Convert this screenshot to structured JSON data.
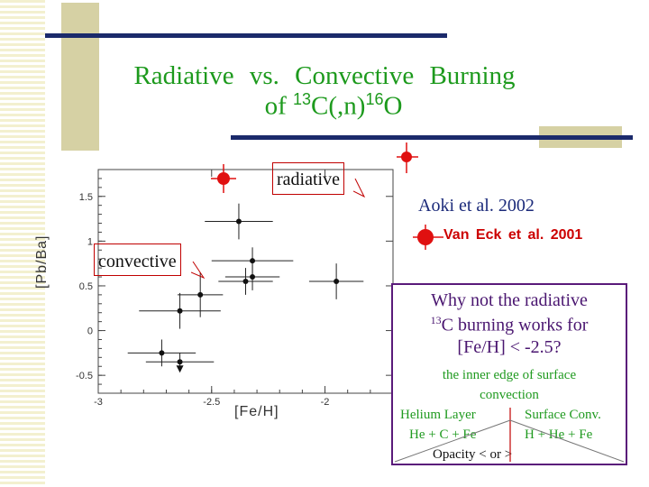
{
  "title": {
    "line1": "Radiative vs. Convective Burning",
    "line2_prefix": "of ",
    "sup13": "13",
    "line2_mid": "C(,n)",
    "sup16": "16",
    "line2_end": "O"
  },
  "chart_data": {
    "type": "scatter",
    "xlabel": "[Fe/H]",
    "ylabel": "[Pb/Ba]",
    "xlim": [
      -3.0,
      -1.7
    ],
    "ylim": [
      -0.7,
      1.8
    ],
    "xticks": [
      "-3",
      "-2.5",
      "-2"
    ],
    "yticks": [
      "1.5",
      "1",
      "0.5",
      "0",
      "-0.5"
    ],
    "series": [
      {
        "name": "Aoki et al. 2002",
        "points": [
          {
            "x": -2.38,
            "y": 1.22,
            "xerr": 0.15,
            "yerr": 0.2
          },
          {
            "x": -2.32,
            "y": 0.78,
            "xerr": 0.18,
            "yerr": 0.15
          },
          {
            "x": -2.32,
            "y": 0.6,
            "xerr": 0.12,
            "yerr": 0.15
          },
          {
            "x": -2.35,
            "y": 0.55,
            "xerr": 0.12,
            "yerr": 0.15
          },
          {
            "x": -1.95,
            "y": 0.55,
            "xerr": 0.12,
            "yerr": 0.2
          },
          {
            "x": -2.55,
            "y": 0.4,
            "xerr": 0.1,
            "yerr": 0.25
          },
          {
            "x": -2.64,
            "y": 0.22,
            "xerr": 0.18,
            "yerr": 0.2
          },
          {
            "x": -2.72,
            "y": -0.25,
            "xerr": 0.15,
            "yerr": 0.15
          },
          {
            "x": -2.64,
            "y": -0.35,
            "xerr": 0.15,
            "yerr": 0.1,
            "upper_limit": true
          }
        ]
      },
      {
        "name": "Van Eck et al. 2001",
        "color": "#e01010"
      }
    ]
  },
  "labels": {
    "radiative": "radiative",
    "convective": "convective",
    "aoki": "Aoki et al. 2002",
    "vaneck": "Van Eck et al. 2001"
  },
  "why_box": {
    "line1": "Why not the radiative",
    "line2_sup": "13",
    "line2": "C burning works for",
    "line3": "[Fe/H] < -2.5?",
    "line4": "the inner edge of surface",
    "line5": "convection",
    "helium_layer": "Helium Layer",
    "surface_conv": "Surface Conv.",
    "left_comp": "He + C + Fe",
    "right_comp": "H + He + Fe",
    "opacity": "Opacity < or >"
  },
  "colors": {
    "title": "#1d9a1d",
    "accent_bar": "#1b2a6b",
    "accent_block": "#d6d1a4",
    "marker_red": "#e01010"
  }
}
